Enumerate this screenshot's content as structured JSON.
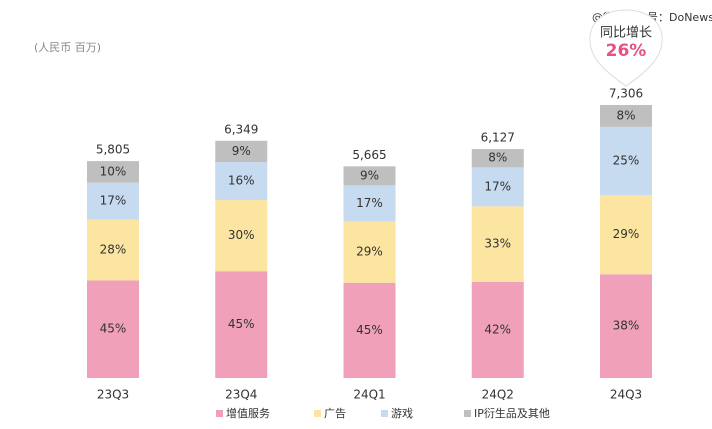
{
  "chart_data": {
    "type": "bar",
    "stacked": true,
    "unit_label": "(人民币 百万)",
    "watermark": "@微信公众号：DoNews",
    "annotation": {
      "title": "同比增长",
      "value": 26,
      "value_label": "26%"
    },
    "categories": [
      "23Q3",
      "23Q4",
      "24Q1",
      "24Q2",
      "24Q3"
    ],
    "totals": {
      "values": [
        5805,
        6349,
        5665,
        6127,
        7306
      ],
      "value_labels": [
        "5,805",
        "6,349",
        "5,665",
        "6,127",
        "7,306"
      ]
    },
    "series": [
      {
        "name": "增值服务",
        "color": "#f0a1b9",
        "values": [
          45,
          45,
          45,
          42,
          38
        ],
        "value_labels": [
          "45%",
          "45%",
          "45%",
          "42%",
          "38%"
        ]
      },
      {
        "name": "广告",
        "color": "#fbe5a1",
        "values": [
          28,
          30,
          29,
          33,
          29
        ],
        "value_labels": [
          "28%",
          "30%",
          "29%",
          "33%",
          "29%"
        ]
      },
      {
        "name": "游戏",
        "color": "#c6daf0",
        "values": [
          17,
          16,
          17,
          17,
          25
        ],
        "value_labels": [
          "17%",
          "16%",
          "17%",
          "17%",
          "25%"
        ]
      },
      {
        "name": "IP衍生品及其他",
        "color": "#bfbfbf",
        "values": [
          10,
          9,
          9,
          8,
          8
        ],
        "value_labels": [
          "10%",
          "9%",
          "9%",
          "8%",
          "8%"
        ]
      }
    ]
  }
}
